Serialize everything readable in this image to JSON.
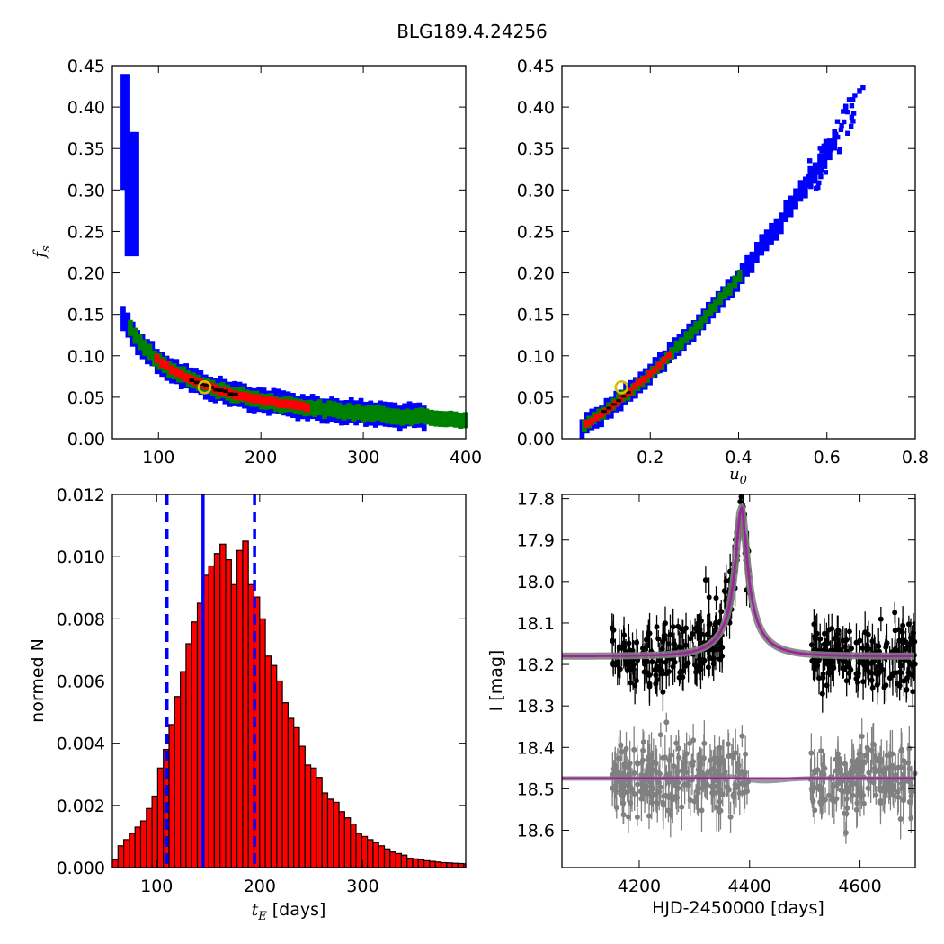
{
  "figure_title": "BLG189.4.24256",
  "colors": {
    "level1": "#0000ff",
    "level2": "#008000",
    "level3": "#ff0000",
    "level4": "#000000",
    "marker": "#d4c000",
    "hist_bar": "#ff0000",
    "line_blue": "#0000ff",
    "model": "#a020a0",
    "model_band": "#808080",
    "data_black": "#000000",
    "data_gray": "#808080"
  },
  "chart_data": [
    {
      "type": "heatmap",
      "panel": "top-left",
      "xlabel": "",
      "ylabel": "f_s",
      "xlim": [
        55,
        400
      ],
      "ylim": [
        0,
        0.45
      ],
      "xticks": [
        "100",
        "200",
        "300",
        "400"
      ],
      "yticks": [
        "0.00",
        "0.05",
        "0.10",
        "0.15",
        "0.20",
        "0.25",
        "0.30",
        "0.35",
        "0.40",
        "0.45"
      ],
      "description_levels": [
        "blue",
        "green",
        "red",
        "black"
      ],
      "best_fit": {
        "x": 145,
        "y": 0.062
      },
      "curve": {
        "model": "fs = 9.2 / tE",
        "x_range": [
          62,
          400
        ]
      }
    },
    {
      "type": "heatmap",
      "panel": "top-right",
      "xlabel": "u_0",
      "ylabel": "",
      "xlim": [
        0,
        0.8
      ],
      "ylim": [
        0,
        0.45
      ],
      "xticks": [
        "0.2",
        "0.4",
        "0.6",
        "0.8"
      ],
      "yticks": [
        "0.00",
        "0.05",
        "0.10",
        "0.15",
        "0.20",
        "0.25",
        "0.30",
        "0.35",
        "0.40",
        "0.45"
      ],
      "best_fit": {
        "x": 0.135,
        "y": 0.062
      },
      "curve": {
        "model": "fs = 0.32*u0 + 0.44*u0^2",
        "x_range": [
          0.04,
          0.69
        ]
      }
    },
    {
      "type": "bar",
      "panel": "bottom-left",
      "xlabel": "t_E [days]",
      "ylabel": "normed N",
      "xlim": [
        57,
        400
      ],
      "ylim": [
        0,
        0.012
      ],
      "xticks": [
        "100",
        "200",
        "300"
      ],
      "yticks": [
        "0.000",
        "0.002",
        "0.004",
        "0.006",
        "0.008",
        "0.010",
        "0.012"
      ],
      "bin_start": 57,
      "bin_width": 5.5,
      "values": [
        0.00025,
        0.0007,
        0.0009,
        0.0011,
        0.0013,
        0.0015,
        0.0019,
        0.0023,
        0.0032,
        0.0038,
        0.0046,
        0.0055,
        0.0063,
        0.0072,
        0.0079,
        0.0085,
        0.0094,
        0.0097,
        0.0101,
        0.0104,
        0.0099,
        0.0091,
        0.0102,
        0.0105,
        0.0091,
        0.0087,
        0.008,
        0.0068,
        0.0065,
        0.006,
        0.0053,
        0.0048,
        0.0045,
        0.0039,
        0.0033,
        0.0032,
        0.0029,
        0.0024,
        0.0022,
        0.0021,
        0.0018,
        0.0016,
        0.0014,
        0.0011,
        0.001,
        0.0009,
        0.0008,
        0.0007,
        0.0006,
        0.0005,
        0.00045,
        0.0004,
        0.0003,
        0.00028,
        0.00025,
        0.00022,
        0.0002,
        0.00018,
        0.00016,
        0.00015,
        0.00014,
        0.00013,
        0.00012,
        0.00011
      ],
      "vlines": [
        {
          "x": 145,
          "style": "solid"
        },
        {
          "x": 110,
          "style": "dashed"
        },
        {
          "x": 195,
          "style": "dashed"
        }
      ]
    },
    {
      "type": "scatter",
      "panel": "bottom-right",
      "xlabel": "HJD-2450000 [days]",
      "ylabel": "I [mag]",
      "xlim": [
        4060,
        4700
      ],
      "ylim": [
        18.69,
        17.79
      ],
      "xticks": [
        "4200",
        "4400",
        "4600"
      ],
      "yticks": [
        "17.8",
        "17.9",
        "18.0",
        "18.1",
        "18.2",
        "18.3",
        "18.4",
        "18.5",
        "18.6"
      ],
      "model": {
        "baseline": 18.18,
        "peak_time": 4385,
        "peak_mag": 17.82,
        "tE": 145,
        "u0": 0.135
      },
      "residual_baseline": 18.475,
      "observing_seasons": [
        [
          4150,
          4400
        ],
        [
          4510,
          4700
        ]
      ]
    }
  ]
}
